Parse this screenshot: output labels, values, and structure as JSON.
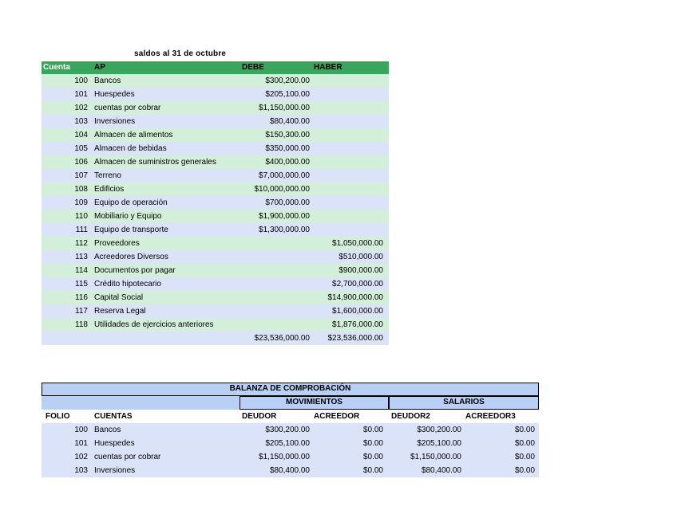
{
  "colors": {
    "header_green": "#3aa55c",
    "row_green": "#d4efd9",
    "row_blue": "#dae3f7",
    "panel_blue": "#b8cff6",
    "border_black": "#000000"
  },
  "top_table": {
    "title": "saldos al 31 de octubre",
    "headers": {
      "cuenta": "Cuenta",
      "ap": "AP",
      "debe": "DEBE",
      "haber": "HABER"
    },
    "rows": [
      {
        "cuenta": "100",
        "ap": "Bancos",
        "debe": "$300,200.00",
        "haber": ""
      },
      {
        "cuenta": "101",
        "ap": "Huespedes",
        "debe": "$205,100.00",
        "haber": ""
      },
      {
        "cuenta": "102",
        "ap": "cuentas por cobrar",
        "debe": "$1,150,000.00",
        "haber": ""
      },
      {
        "cuenta": "103",
        "ap": "Inversiones",
        "debe": "$80,400.00",
        "haber": ""
      },
      {
        "cuenta": "104",
        "ap": "Almacen de alimentos",
        "debe": "$150,300.00",
        "haber": ""
      },
      {
        "cuenta": "105",
        "ap": "Almacen de bebidas",
        "debe": "$350,000.00",
        "haber": ""
      },
      {
        "cuenta": "106",
        "ap": "Almacen de suministros generales",
        "debe": "$400,000.00",
        "haber": ""
      },
      {
        "cuenta": "107",
        "ap": "Terreno",
        "debe": "$7,000,000.00",
        "haber": ""
      },
      {
        "cuenta": "108",
        "ap": "Edificios",
        "debe": "$10,000,000.00",
        "haber": ""
      },
      {
        "cuenta": "109",
        "ap": "Equipo de operación",
        "debe": "$700,000.00",
        "haber": ""
      },
      {
        "cuenta": "110",
        "ap": "Mobiliario y Equipo",
        "debe": "$1,900,000.00",
        "haber": ""
      },
      {
        "cuenta": "111",
        "ap": "Equipo de transporte",
        "debe": "$1,300,000.00",
        "haber": ""
      },
      {
        "cuenta": "112",
        "ap": "Proveedores",
        "debe": "",
        "haber": "$1,050,000.00"
      },
      {
        "cuenta": "113",
        "ap": "Acreedores Diversos",
        "debe": "",
        "haber": "$510,000.00"
      },
      {
        "cuenta": "114",
        "ap": "Documentos por pagar",
        "debe": "",
        "haber": "$900,000.00"
      },
      {
        "cuenta": "115",
        "ap": "Crédito hipotecario",
        "debe": "",
        "haber": "$2,700,000.00"
      },
      {
        "cuenta": "116",
        "ap": "Capital Social",
        "debe": "",
        "haber": "$14,900,000.00"
      },
      {
        "cuenta": "117",
        "ap": "Reserva Legal",
        "debe": "",
        "haber": "$1,600,000.00"
      },
      {
        "cuenta": "118",
        "ap": "Utilidades de ejercicios anteriores",
        "debe": "",
        "haber": "$1,876,000.00"
      }
    ],
    "total": {
      "debe": "$23,536,000.00",
      "haber": "$23,536,000.00"
    }
  },
  "bottom_table": {
    "title": "BALANZA DE COMPROBACIÓN",
    "groups": {
      "movimientos": "MOVIMIENTOS",
      "salarios": "SALARIOS"
    },
    "headers": {
      "folio": "FOLIO",
      "cuentas": "CUENTAS",
      "deudor": "DEUDOR",
      "acreedor": "ACREEDOR",
      "deudor2": "DEUDOR2",
      "acreedor3": "ACREEDOR3"
    },
    "rows": [
      {
        "folio": "100",
        "cuentas": "Bancos",
        "deudor": "$300,200.00",
        "acreedor": "$0.00",
        "deudor2": "$300,200.00",
        "acreedor3": "$0.00"
      },
      {
        "folio": "101",
        "cuentas": "Huespedes",
        "deudor": "$205,100.00",
        "acreedor": "$0.00",
        "deudor2": "$205,100.00",
        "acreedor3": "$0.00"
      },
      {
        "folio": "102",
        "cuentas": "cuentas por cobrar",
        "deudor": "$1,150,000.00",
        "acreedor": "$0.00",
        "deudor2": "$1,150,000.00",
        "acreedor3": "$0.00"
      },
      {
        "folio": "103",
        "cuentas": "Inversiones",
        "deudor": "$80,400.00",
        "acreedor": "$0.00",
        "deudor2": "$80,400.00",
        "acreedor3": "$0.00"
      }
    ]
  }
}
